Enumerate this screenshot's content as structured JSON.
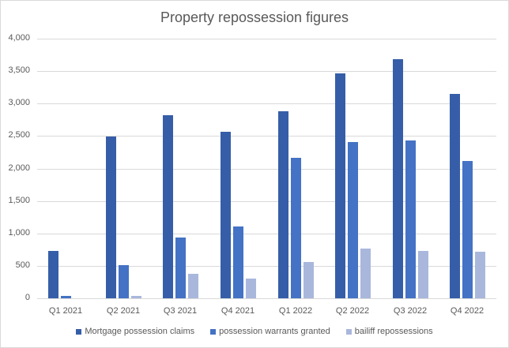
{
  "chart_data": {
    "type": "bar",
    "title": "Property repossession figures",
    "xlabel": "",
    "ylabel": "",
    "ylim": [
      0,
      4000
    ],
    "yticks": [
      "0",
      "500",
      "1,000",
      "1,500",
      "2,000",
      "2,500",
      "3,000",
      "3,500",
      "4,000"
    ],
    "grid": true,
    "legend_position": "bottom",
    "categories": [
      "Q1 2021",
      "Q2 2021",
      "Q3 2021",
      "Q4 2021",
      "Q1 2022",
      "Q2 2022",
      "Q3 2022",
      "Q4 2022"
    ],
    "series": [
      {
        "name": "Mortgage possession claims",
        "color": "#365ea8",
        "values": [
          730,
          2490,
          2820,
          2570,
          2880,
          3470,
          3680,
          3150
        ]
      },
      {
        "name": "possession warrants granted",
        "color": "#4472c4",
        "values": [
          40,
          510,
          940,
          1110,
          2160,
          2410,
          2435,
          2110
        ]
      },
      {
        "name": "bailiff repossessions",
        "color": "#a9b7dc",
        "values": [
          0,
          40,
          380,
          305,
          563,
          760,
          735,
          722
        ]
      }
    ]
  }
}
